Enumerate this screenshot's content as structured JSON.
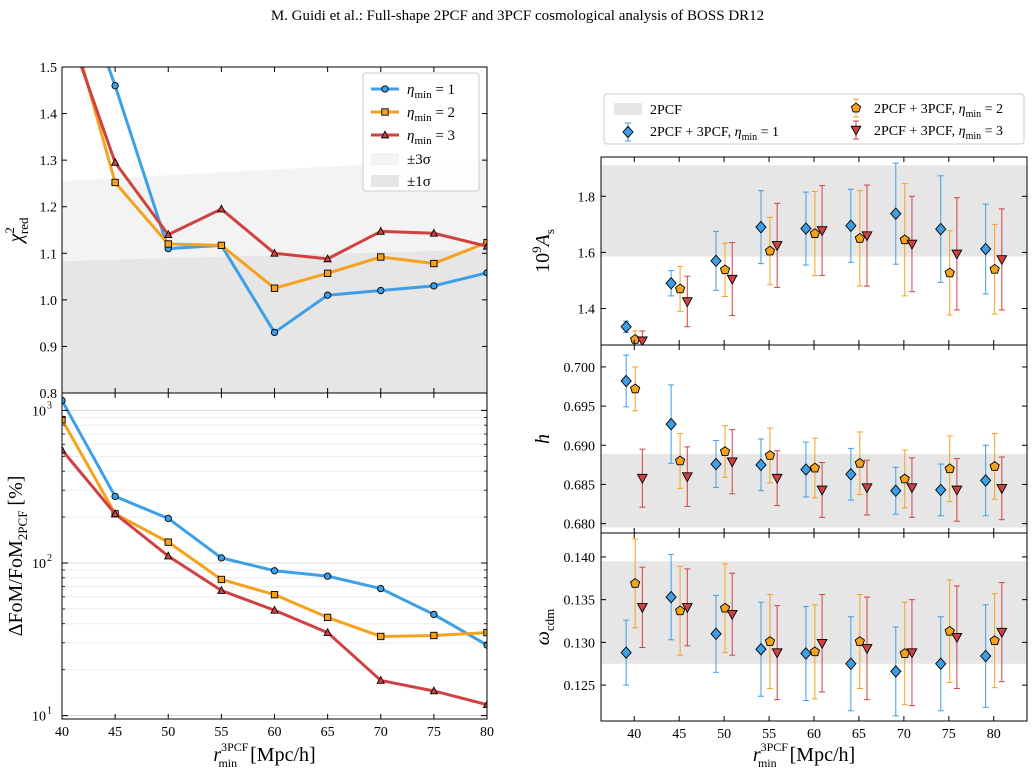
{
  "header": "M. Guidi et al.: Full-shape 2PCF and 3PCF cosmological analysis of BOSS DR12",
  "colors": {
    "blue": "#3c9fe8",
    "orange": "#f5a21d",
    "red": "#d04242",
    "band_dark": "#e6e6e6",
    "band_light": "#f3f3f3"
  },
  "chart_data": [
    {
      "id": "chi2",
      "type": "line",
      "ylabel_base": "χ",
      "ylabel_sup": "2",
      "ylabel_sub": "red",
      "xlim": [
        40,
        80
      ],
      "ylim": [
        0.8,
        1.5
      ],
      "yticks": [
        "0.8",
        "0.9",
        "1.0",
        "1.1",
        "1.2",
        "1.3",
        "1.4",
        "1.5"
      ],
      "x": [
        40,
        45,
        50,
        55,
        60,
        65,
        70,
        75,
        80
      ],
      "bands": [
        {
          "label": "±3σ",
          "x": [
            40,
            80
          ],
          "lower": [
            0.8,
            0.8
          ],
          "upper": [
            1.255,
            1.305
          ],
          "color": "#f3f3f3"
        },
        {
          "label": "±1σ",
          "x": [
            40,
            80
          ],
          "lower": [
            0.8,
            0.8
          ],
          "upper": [
            1.083,
            1.108
          ],
          "color": "#e6e6e6"
        }
      ],
      "series": [
        {
          "name": "η",
          "name_sub": "min",
          "name_tail": " = 1",
          "color": "#3c9fe8",
          "marker": "circle",
          "values": [
            1.78,
            1.46,
            1.11,
            1.117,
            0.93,
            1.01,
            1.02,
            1.03,
            1.058
          ]
        },
        {
          "name": "η",
          "name_sub": "min",
          "name_tail": " = 2",
          "color": "#f5a21d",
          "marker": "square",
          "values": [
            1.66,
            1.252,
            1.12,
            1.117,
            1.025,
            1.057,
            1.092,
            1.078,
            1.123
          ]
        },
        {
          "name": "η",
          "name_sub": "min",
          "name_tail": " = 3",
          "color": "#d04242",
          "marker": "triangle",
          "values": [
            1.62,
            1.295,
            1.14,
            1.195,
            1.1,
            1.088,
            1.147,
            1.143,
            1.115
          ]
        }
      ],
      "legend_position": "top-right",
      "band_legend": [
        "±3σ",
        "±1σ"
      ]
    },
    {
      "id": "fom",
      "type": "line",
      "scale": "log",
      "ylabel": "ΔFoM/FoM",
      "ylabel_sub": "2PCF",
      "ylabel_tail": " [%]",
      "xlim": [
        40,
        80
      ],
      "ylim": [
        9.5,
        1300
      ],
      "yticks": [
        {
          "value": 1000,
          "base": "10",
          "exp": "3"
        },
        {
          "value": 100,
          "base": "10",
          "exp": "2"
        },
        {
          "value": 10,
          "base": "10",
          "exp": "1"
        }
      ],
      "xticks": [
        "40",
        "45",
        "50",
        "55",
        "60",
        "65",
        "70",
        "75",
        "80"
      ],
      "xlabel_r": "r",
      "xlabel_sup": "3PCF",
      "xlabel_sub": "min",
      "xlabel_tail": " [Mpc/h]",
      "x": [
        40,
        45,
        50,
        55,
        60,
        65,
        70,
        75,
        80
      ],
      "series": [
        {
          "color": "#3c9fe8",
          "marker": "circle",
          "values": [
            1160,
            273,
            196,
            108,
            89,
            82,
            68,
            46,
            29
          ]
        },
        {
          "color": "#f5a21d",
          "marker": "square",
          "values": [
            870,
            210,
            137,
            78,
            62,
            44,
            33,
            33.5,
            35
          ]
        },
        {
          "color": "#d04242",
          "marker": "triangle",
          "values": [
            550,
            210,
            111,
            66,
            49,
            35,
            17,
            14.5,
            11.8
          ]
        }
      ]
    },
    {
      "id": "As",
      "type": "scatter",
      "ylabel_base": "10",
      "ylabel_sup": "9",
      "ylabel_tail": "A",
      "ylabel_sub": "s",
      "xlim": [
        36.3,
        83.7
      ],
      "ylim": [
        1.27,
        1.94
      ],
      "yticks": [
        "1.4",
        "1.6",
        "1.8"
      ],
      "band": [
        1.585,
        1.91
      ],
      "x": [
        40,
        45,
        50,
        55,
        60,
        65,
        70,
        75,
        80
      ],
      "series": [
        {
          "color": "#3c9fe8",
          "marker": "diamond",
          "dx": -0.9,
          "values": [
            1.335,
            1.49,
            1.57,
            1.69,
            1.685,
            1.695,
            1.738,
            1.683,
            1.612
          ],
          "err": [
            0.02,
            0.045,
            0.105,
            0.13,
            0.13,
            0.13,
            0.18,
            0.19,
            0.16
          ]
        },
        {
          "color": "#f5a21d",
          "marker": "pentagon",
          "dx": 0.1,
          "values": [
            1.29,
            1.47,
            1.538,
            1.605,
            1.667,
            1.65,
            1.645,
            1.527,
            1.54
          ],
          "err": [
            0.03,
            0.08,
            0.095,
            0.12,
            0.15,
            0.17,
            0.2,
            0.15,
            0.16
          ]
        },
        {
          "color": "#d04242",
          "marker": "triangle-down",
          "dx": 0.9,
          "values": [
            1.285,
            1.425,
            1.505,
            1.625,
            1.678,
            1.66,
            1.63,
            1.595,
            1.575
          ],
          "err": [
            0.035,
            0.09,
            0.13,
            0.15,
            0.16,
            0.18,
            0.17,
            0.2,
            0.18
          ]
        }
      ]
    },
    {
      "id": "h",
      "type": "scatter",
      "ylabel_base": "h",
      "xlim": [
        36.3,
        83.7
      ],
      "ylim": [
        0.6788,
        0.7028
      ],
      "yticks": [
        "0.680",
        "0.685",
        "0.690",
        "0.695",
        "0.700"
      ],
      "band": [
        0.6795,
        0.6889
      ],
      "x": [
        40,
        45,
        50,
        55,
        60,
        65,
        70,
        75,
        80
      ],
      "series": [
        {
          "color": "#3c9fe8",
          "marker": "diamond",
          "dx": -0.9,
          "values": [
            0.6982,
            0.6927,
            0.6876,
            0.6875,
            0.6869,
            0.6863,
            0.6842,
            0.6843,
            0.6855
          ],
          "err": [
            0.0033,
            0.005,
            0.003,
            0.0033,
            0.0035,
            0.0033,
            0.003,
            0.0033,
            0.0045
          ]
        },
        {
          "color": "#f5a21d",
          "marker": "pentagon",
          "dx": 0.1,
          "values": [
            0.6972,
            0.688,
            0.6892,
            0.6887,
            0.6871,
            0.6877,
            0.6857,
            0.687,
            0.6873
          ],
          "err": [
            0.0028,
            0.0035,
            0.0033,
            0.0035,
            0.0038,
            0.004,
            0.0037,
            0.0042,
            0.0042
          ]
        },
        {
          "color": "#d04242",
          "marker": "triangle-down",
          "dx": 0.9,
          "values": [
            0.6858,
            0.686,
            0.6879,
            0.6858,
            0.6843,
            0.6846,
            0.6846,
            0.6843,
            0.6845
          ],
          "err": [
            0.0037,
            0.0038,
            0.0041,
            0.0035,
            0.0035,
            0.0035,
            0.0038,
            0.004,
            0.004
          ]
        }
      ]
    },
    {
      "id": "wcdm",
      "type": "scatter",
      "ylabel_base": "ω",
      "ylabel_sub": "cdm",
      "xlim": [
        36.3,
        83.7
      ],
      "ylim": [
        0.1208,
        0.1428
      ],
      "yticks": [
        "0.125",
        "0.130",
        "0.135",
        "0.140"
      ],
      "xticks": [
        "40",
        "45",
        "50",
        "55",
        "60",
        "65",
        "70",
        "75",
        "80"
      ],
      "xlabel_r": "r",
      "xlabel_sup": "3PCF",
      "xlabel_sub": "min",
      "xlabel_tail": " [Mpc/h]",
      "band": [
        0.1275,
        0.1395
      ],
      "x": [
        40,
        45,
        50,
        55,
        60,
        65,
        70,
        75,
        80
      ],
      "series": [
        {
          "color": "#3c9fe8",
          "marker": "diamond",
          "dx": -0.9,
          "values": [
            0.1288,
            0.1353,
            0.131,
            0.1292,
            0.1287,
            0.1275,
            0.1266,
            0.1275,
            0.1284
          ],
          "err": [
            0.0038,
            0.005,
            0.0045,
            0.0055,
            0.0055,
            0.0055,
            0.0052,
            0.0055,
            0.006
          ]
        },
        {
          "color": "#f5a21d",
          "marker": "pentagon",
          "dx": 0.1,
          "values": [
            0.1369,
            0.1337,
            0.134,
            0.1301,
            0.1289,
            0.1301,
            0.1287,
            0.1313,
            0.1302
          ],
          "err": [
            0.0052,
            0.0052,
            0.0052,
            0.0055,
            0.0055,
            0.0055,
            0.006,
            0.006,
            0.0055
          ]
        },
        {
          "color": "#d04242",
          "marker": "triangle-down",
          "dx": 0.9,
          "values": [
            0.1341,
            0.1341,
            0.1333,
            0.1288,
            0.1299,
            0.1293,
            0.1288,
            0.1306,
            0.1312
          ],
          "err": [
            0.0047,
            0.0045,
            0.0048,
            0.0055,
            0.0057,
            0.006,
            0.0062,
            0.006,
            0.0058
          ]
        }
      ]
    }
  ],
  "right_legend": {
    "band_label": "2PCF",
    "items": [
      {
        "label": "2PCF + 3PCF, ",
        "eta": "η",
        "sub": "min",
        "tail": " = 1",
        "color": "#3c9fe8",
        "marker": "diamond"
      },
      {
        "label": "2PCF + 3PCF, ",
        "eta": "η",
        "sub": "min",
        "tail": " = 2",
        "color": "#f5a21d",
        "marker": "pentagon"
      },
      {
        "label": "2PCF + 3PCF, ",
        "eta": "η",
        "sub": "min",
        "tail": " = 3",
        "color": "#d04242",
        "marker": "triangle-down"
      }
    ]
  }
}
